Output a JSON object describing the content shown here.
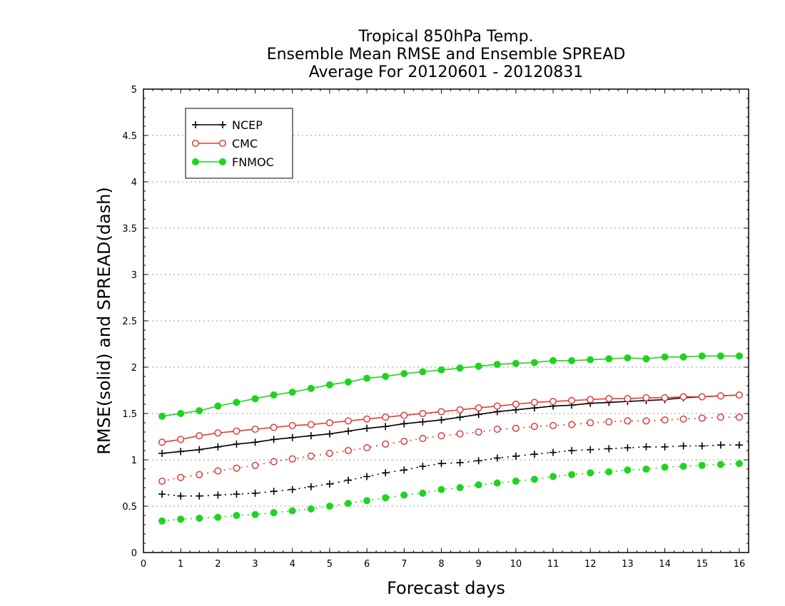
{
  "chart_data": {
    "type": "line",
    "title_lines": [
      "Tropical 850hPa Temp.",
      "Ensemble Mean RMSE and Ensemble SPREAD",
      "Average For 20120601 - 20120831"
    ],
    "xlabel": "Forecast days",
    "ylabel": "RMSE(solid) and SPREAD(dash)",
    "xlim": [
      0,
      16.25
    ],
    "ylim": [
      0,
      5
    ],
    "x_ticks": [
      "0",
      "1",
      "2",
      "3",
      "4",
      "5",
      "6",
      "7",
      "8",
      "9",
      "10",
      "11",
      "12",
      "13",
      "14",
      "15",
      "16"
    ],
    "y_ticks": [
      "0",
      "0.5",
      "1",
      "1.5",
      "2",
      "2.5",
      "3",
      "3.5",
      "4",
      "4.5",
      "5"
    ],
    "grid": "horizontal dotted",
    "legend_position": "top-left",
    "x": [
      0.5,
      1,
      1.5,
      2,
      2.5,
      3,
      3.5,
      4,
      4.5,
      5,
      5.5,
      6,
      6.5,
      7,
      7.5,
      8,
      8.5,
      9,
      9.5,
      10,
      10.5,
      11,
      11.5,
      12,
      12.5,
      13,
      13.5,
      14,
      14.5,
      15,
      15.5,
      16
    ],
    "series": [
      {
        "name": "NCEP",
        "color": "#000000",
        "marker": "plus",
        "rmse": [
          1.07,
          1.09,
          1.11,
          1.14,
          1.17,
          1.19,
          1.22,
          1.24,
          1.26,
          1.28,
          1.31,
          1.34,
          1.36,
          1.39,
          1.41,
          1.43,
          1.46,
          1.49,
          1.52,
          1.54,
          1.56,
          1.58,
          1.59,
          1.61,
          1.62,
          1.63,
          1.64,
          1.65,
          1.67,
          1.68,
          1.69,
          1.7
        ],
        "spread": [
          0.63,
          0.61,
          0.61,
          0.62,
          0.63,
          0.64,
          0.66,
          0.68,
          0.71,
          0.74,
          0.78,
          0.82,
          0.86,
          0.89,
          0.93,
          0.96,
          0.97,
          0.99,
          1.02,
          1.04,
          1.06,
          1.08,
          1.1,
          1.11,
          1.12,
          1.13,
          1.14,
          1.14,
          1.15,
          1.15,
          1.16,
          1.16
        ]
      },
      {
        "name": "CMC",
        "color": "#e03c3c",
        "marker": "open-circle",
        "rmse": [
          1.19,
          1.22,
          1.26,
          1.29,
          1.31,
          1.33,
          1.35,
          1.37,
          1.38,
          1.4,
          1.42,
          1.44,
          1.46,
          1.48,
          1.5,
          1.52,
          1.54,
          1.56,
          1.58,
          1.6,
          1.62,
          1.63,
          1.64,
          1.65,
          1.66,
          1.66,
          1.67,
          1.67,
          1.68,
          1.68,
          1.69,
          1.7
        ],
        "spread": [
          0.77,
          0.81,
          0.84,
          0.88,
          0.91,
          0.94,
          0.98,
          1.01,
          1.04,
          1.07,
          1.1,
          1.13,
          1.17,
          1.2,
          1.23,
          1.26,
          1.28,
          1.3,
          1.33,
          1.34,
          1.36,
          1.37,
          1.38,
          1.4,
          1.41,
          1.42,
          1.42,
          1.43,
          1.44,
          1.45,
          1.46,
          1.46
        ]
      },
      {
        "name": "FNMOC",
        "color": "#1ed41e",
        "marker": "filled-circle",
        "rmse": [
          1.47,
          1.5,
          1.53,
          1.58,
          1.62,
          1.66,
          1.7,
          1.73,
          1.77,
          1.81,
          1.84,
          1.88,
          1.9,
          1.93,
          1.95,
          1.97,
          1.99,
          2.01,
          2.03,
          2.04,
          2.05,
          2.07,
          2.07,
          2.08,
          2.09,
          2.1,
          2.09,
          2.11,
          2.11,
          2.12,
          2.12,
          2.12
        ],
        "spread": [
          0.34,
          0.36,
          0.37,
          0.38,
          0.4,
          0.41,
          0.43,
          0.45,
          0.47,
          0.5,
          0.53,
          0.56,
          0.59,
          0.62,
          0.64,
          0.68,
          0.7,
          0.73,
          0.75,
          0.77,
          0.79,
          0.82,
          0.84,
          0.86,
          0.87,
          0.89,
          0.9,
          0.92,
          0.93,
          0.94,
          0.95,
          0.96
        ]
      }
    ]
  }
}
